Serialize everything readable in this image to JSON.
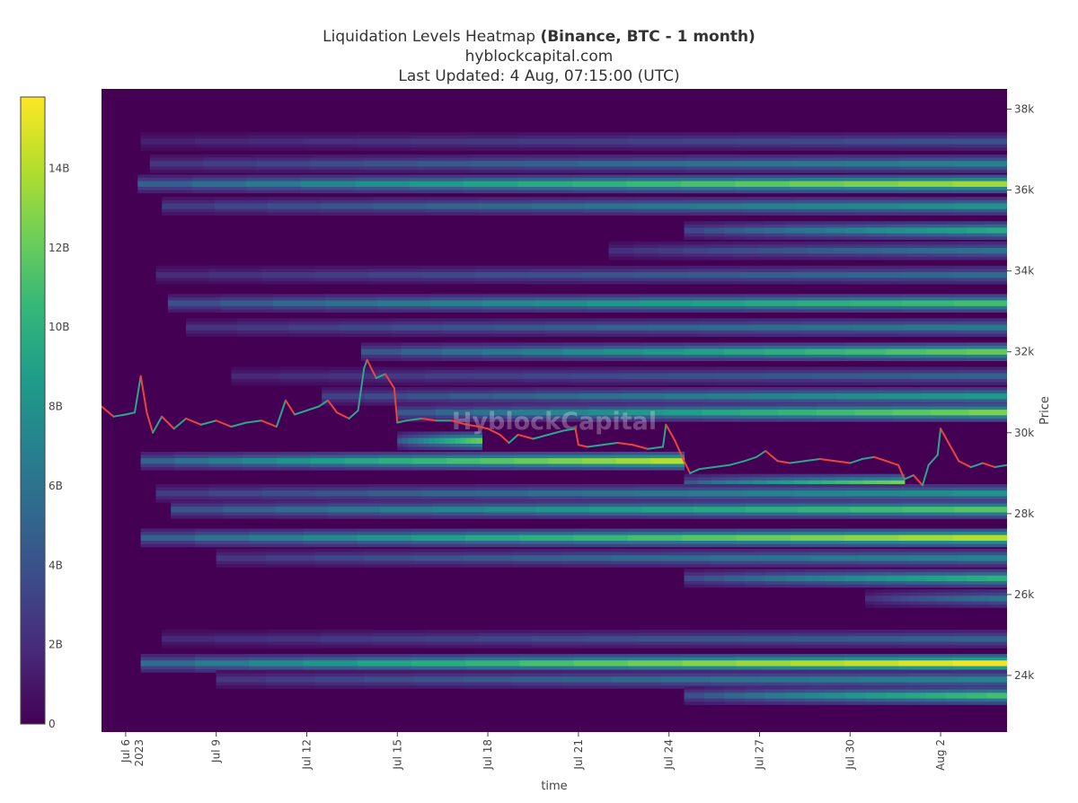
{
  "title": {
    "line1_prefix": "Liquidation Levels Heatmap ",
    "line1_bold": "(Binance, BTC - 1 month)",
    "line2": "hyblockcapital.com",
    "line3": "Last Updated: 4 Aug, 07:15:00 (UTC)"
  },
  "watermark": "HyblockCapital",
  "colors": {
    "background": "#440154",
    "price_up": "#2ca58d",
    "price_down": "#e8463c",
    "colorscale": [
      "#440154",
      "#482878",
      "#3e4989",
      "#31688e",
      "#26828e",
      "#1f9e89",
      "#35b779",
      "#6ece58",
      "#b5de2b",
      "#fde725"
    ]
  },
  "chart_data": {
    "type": "heatmap",
    "title": "Liquidation Levels Heatmap (Binance, BTC - 1 month)",
    "xlabel": "time",
    "ylabel": "Price",
    "x_ticks": [
      "Jul 6",
      "Jul 9",
      "Jul 12",
      "Jul 15",
      "Jul 18",
      "Jul 21",
      "Jul 24",
      "Jul 27",
      "Jul 30",
      "Aug 2"
    ],
    "x_year_label": "2023",
    "y_ticks": [
      {
        "value": 24000,
        "label": "24k"
      },
      {
        "value": 26000,
        "label": "26k"
      },
      {
        "value": 28000,
        "label": "28k"
      },
      {
        "value": 30000,
        "label": "30k"
      },
      {
        "value": 32000,
        "label": "32k"
      },
      {
        "value": 34000,
        "label": "34k"
      },
      {
        "value": 36000,
        "label": "36k"
      },
      {
        "value": 38000,
        "label": "38k"
      }
    ],
    "x_range_days": [
      5.2,
      35.2
    ],
    "y_range": [
      22600,
      38500
    ],
    "colorbar": {
      "range": [
        0,
        15800000000
      ],
      "ticks": [
        {
          "value": 0,
          "label": "0"
        },
        {
          "value": 2000000000,
          "label": "2B"
        },
        {
          "value": 4000000000,
          "label": "4B"
        },
        {
          "value": 6000000000,
          "label": "6B"
        },
        {
          "value": 8000000000,
          "label": "8B"
        },
        {
          "value": 10000000000,
          "label": "10B"
        },
        {
          "value": 12000000000,
          "label": "12B"
        },
        {
          "value": 14000000000,
          "label": "14B"
        }
      ]
    },
    "liquidation_bands": [
      {
        "price": 37200,
        "start_day": 6.5,
        "peak": 4.0
      },
      {
        "price": 36650,
        "start_day": 6.8,
        "peak": 7.0
      },
      {
        "price": 36150,
        "start_day": 6.4,
        "peak": 13.5
      },
      {
        "price": 35600,
        "start_day": 7.2,
        "peak": 8.0
      },
      {
        "price": 35000,
        "start_day": 24.5,
        "peak": 9.5
      },
      {
        "price": 34500,
        "start_day": 22.0,
        "peak": 6.0
      },
      {
        "price": 33900,
        "start_day": 7.0,
        "peak": 5.5
      },
      {
        "price": 33200,
        "start_day": 7.4,
        "peak": 11.0
      },
      {
        "price": 32600,
        "start_day": 8.0,
        "peak": 6.5
      },
      {
        "price": 32000,
        "start_day": 13.8,
        "peak": 12.0
      },
      {
        "price": 31400,
        "start_day": 9.5,
        "peak": 5.0
      },
      {
        "price": 30900,
        "start_day": 12.5,
        "peak": 8.5
      },
      {
        "price": 30500,
        "start_day": 15.0,
        "peak": 12.5
      },
      {
        "price": 29800,
        "start_day": 15.0,
        "peak": 12.0,
        "end_day": 17.8
      },
      {
        "price": 29300,
        "start_day": 6.5,
        "peak": 14.0,
        "end_day": 24.5
      },
      {
        "price": 28750,
        "start_day": 24.5,
        "peak": 12.5,
        "end_day": 31.8
      },
      {
        "price": 28500,
        "start_day": 7.0,
        "peak": 8.0
      },
      {
        "price": 28100,
        "start_day": 7.5,
        "peak": 11.5
      },
      {
        "price": 27400,
        "start_day": 6.5,
        "peak": 14.0
      },
      {
        "price": 26900,
        "start_day": 9.0,
        "peak": 7.0
      },
      {
        "price": 26400,
        "start_day": 24.5,
        "peak": 10.0
      },
      {
        "price": 25900,
        "start_day": 30.5,
        "peak": 6.0
      },
      {
        "price": 24900,
        "start_day": 7.2,
        "peak": 5.0
      },
      {
        "price": 24300,
        "start_day": 6.5,
        "peak": 15.5
      },
      {
        "price": 23900,
        "start_day": 9.0,
        "peak": 7.0
      },
      {
        "price": 23500,
        "start_day": 24.5,
        "peak": 11.0
      }
    ],
    "price_series": [
      {
        "day": 5.2,
        "price": 30650
      },
      {
        "day": 5.6,
        "price": 30400
      },
      {
        "day": 6.0,
        "price": 30450
      },
      {
        "day": 6.3,
        "price": 30500
      },
      {
        "day": 6.5,
        "price": 31400
      },
      {
        "day": 6.7,
        "price": 30500
      },
      {
        "day": 6.9,
        "price": 30000
      },
      {
        "day": 7.2,
        "price": 30400
      },
      {
        "day": 7.6,
        "price": 30100
      },
      {
        "day": 8.0,
        "price": 30350
      },
      {
        "day": 8.5,
        "price": 30200
      },
      {
        "day": 9.0,
        "price": 30300
      },
      {
        "day": 9.5,
        "price": 30150
      },
      {
        "day": 10.0,
        "price": 30250
      },
      {
        "day": 10.5,
        "price": 30300
      },
      {
        "day": 11.0,
        "price": 30150
      },
      {
        "day": 11.3,
        "price": 30800
      },
      {
        "day": 11.6,
        "price": 30450
      },
      {
        "day": 12.0,
        "price": 30550
      },
      {
        "day": 12.4,
        "price": 30650
      },
      {
        "day": 12.7,
        "price": 30800
      },
      {
        "day": 13.0,
        "price": 30500
      },
      {
        "day": 13.4,
        "price": 30350
      },
      {
        "day": 13.7,
        "price": 30550
      },
      {
        "day": 13.9,
        "price": 31600
      },
      {
        "day": 14.0,
        "price": 31800
      },
      {
        "day": 14.3,
        "price": 31350
      },
      {
        "day": 14.6,
        "price": 31450
      },
      {
        "day": 14.9,
        "price": 31100
      },
      {
        "day": 15.0,
        "price": 30250
      },
      {
        "day": 15.3,
        "price": 30300
      },
      {
        "day": 15.8,
        "price": 30350
      },
      {
        "day": 16.3,
        "price": 30300
      },
      {
        "day": 16.8,
        "price": 30300
      },
      {
        "day": 17.3,
        "price": 30200
      },
      {
        "day": 17.7,
        "price": 30150
      },
      {
        "day": 18.0,
        "price": 30100
      },
      {
        "day": 18.4,
        "price": 29950
      },
      {
        "day": 18.7,
        "price": 29750
      },
      {
        "day": 19.0,
        "price": 29950
      },
      {
        "day": 19.5,
        "price": 29850
      },
      {
        "day": 20.0,
        "price": 29950
      },
      {
        "day": 20.5,
        "price": 30050
      },
      {
        "day": 20.9,
        "price": 30100
      },
      {
        "day": 21.0,
        "price": 29700
      },
      {
        "day": 21.3,
        "price": 29650
      },
      {
        "day": 21.8,
        "price": 29700
      },
      {
        "day": 22.3,
        "price": 29750
      },
      {
        "day": 22.8,
        "price": 29700
      },
      {
        "day": 23.3,
        "price": 29600
      },
      {
        "day": 23.8,
        "price": 29650
      },
      {
        "day": 23.9,
        "price": 30200
      },
      {
        "day": 24.2,
        "price": 29800
      },
      {
        "day": 24.5,
        "price": 29300
      },
      {
        "day": 24.7,
        "price": 29000
      },
      {
        "day": 25.0,
        "price": 29100
      },
      {
        "day": 25.5,
        "price": 29150
      },
      {
        "day": 26.0,
        "price": 29200
      },
      {
        "day": 26.5,
        "price": 29300
      },
      {
        "day": 26.9,
        "price": 29400
      },
      {
        "day": 27.2,
        "price": 29550
      },
      {
        "day": 27.6,
        "price": 29300
      },
      {
        "day": 28.0,
        "price": 29250
      },
      {
        "day": 28.5,
        "price": 29300
      },
      {
        "day": 29.0,
        "price": 29350
      },
      {
        "day": 29.5,
        "price": 29300
      },
      {
        "day": 30.0,
        "price": 29250
      },
      {
        "day": 30.4,
        "price": 29350
      },
      {
        "day": 30.8,
        "price": 29400
      },
      {
        "day": 31.2,
        "price": 29300
      },
      {
        "day": 31.6,
        "price": 29200
      },
      {
        "day": 31.8,
        "price": 28850
      },
      {
        "day": 32.1,
        "price": 28950
      },
      {
        "day": 32.4,
        "price": 28700
      },
      {
        "day": 32.6,
        "price": 29200
      },
      {
        "day": 32.9,
        "price": 29450
      },
      {
        "day": 33.0,
        "price": 30100
      },
      {
        "day": 33.3,
        "price": 29700
      },
      {
        "day": 33.6,
        "price": 29300
      },
      {
        "day": 34.0,
        "price": 29150
      },
      {
        "day": 34.4,
        "price": 29250
      },
      {
        "day": 34.8,
        "price": 29150
      },
      {
        "day": 35.2,
        "price": 29200
      }
    ]
  }
}
